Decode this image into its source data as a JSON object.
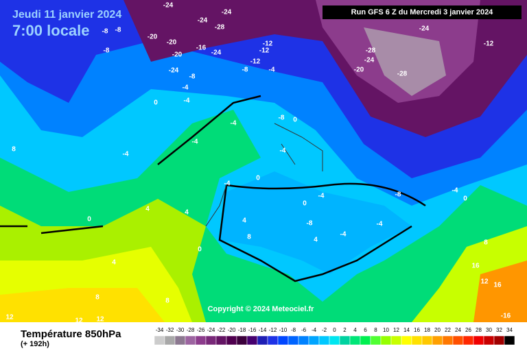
{
  "header": {
    "date": "Jeudi 11 janvier 2024",
    "time": "7:00 locale",
    "run": "Run GFS 6 Z du Mercredi 3 janvier 2024"
  },
  "footer": {
    "title": "Température 850hPa",
    "lead": "(+ 192h)",
    "copyright": "Copyright © 2024 Meteociel.fr"
  },
  "scale": {
    "values": [
      -34,
      -32,
      -30,
      -28,
      -26,
      -24,
      -22,
      -20,
      -18,
      -16,
      -14,
      -12,
      -10,
      -8,
      -6,
      -4,
      -2,
      0,
      2,
      4,
      6,
      8,
      10,
      12,
      14,
      16,
      18,
      20,
      22,
      24,
      26,
      28,
      30,
      32,
      34
    ],
    "colors": [
      "#cccccc",
      "#a8a8a8",
      "#8c7890",
      "#9c64a0",
      "#8c3c8c",
      "#782878",
      "#641464",
      "#50004f",
      "#3c003c",
      "#46006e",
      "#1e1eb4",
      "#1e32e6",
      "#0046ff",
      "#0064ff",
      "#0082ff",
      "#00a5ff",
      "#00c8ff",
      "#00e6f0",
      "#00d2a0",
      "#00e678",
      "#00f050",
      "#50ff32",
      "#96ff00",
      "#c8ff00",
      "#ffff00",
      "#ffe100",
      "#ffc800",
      "#ffa000",
      "#ff7800",
      "#ff5000",
      "#ff2800",
      "#f00000",
      "#c80000",
      "#a00000",
      "#000000"
    ]
  },
  "contour_labels": [
    -24,
    -24,
    -20,
    -28,
    -24,
    -20,
    -16,
    -24,
    -20,
    -24,
    -8,
    -8,
    -8,
    -12,
    -12,
    -8,
    -12,
    -4,
    -24,
    -28,
    -20,
    -24,
    -28,
    -12,
    -4,
    -8,
    0,
    -4,
    -4,
    0,
    -8,
    -4,
    -4,
    -4,
    0,
    -4,
    -4,
    4,
    8,
    4,
    0,
    -4,
    -8,
    -4,
    0,
    -8,
    -4,
    0,
    4,
    4,
    0,
    4,
    8,
    8,
    12,
    12,
    12,
    16,
    -16,
    12,
    16,
    8,
    8
  ]
}
